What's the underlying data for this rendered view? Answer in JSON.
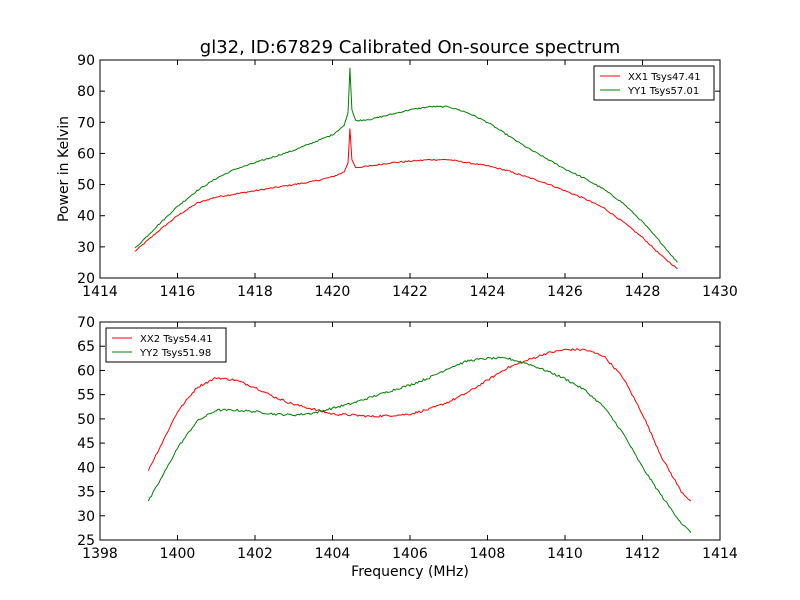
{
  "title": "gl32, ID:67829 Calibrated On-source spectrum",
  "colors": {
    "red": "#ff0000",
    "green": "#008000"
  },
  "chart_data": [
    {
      "type": "line",
      "ylabel": "Power in Kelvin",
      "xlabel": "",
      "xlim": [
        1414,
        1430
      ],
      "ylim": [
        20,
        90
      ],
      "xticks": [
        1414,
        1416,
        1418,
        1420,
        1422,
        1424,
        1426,
        1428,
        1430
      ],
      "yticks": [
        20,
        30,
        40,
        50,
        60,
        70,
        80,
        90
      ],
      "legend_position": "top-right",
      "series": [
        {
          "name": "XX1 Tsys47.41",
          "color": "#ff0000",
          "x": [
            1414.9,
            1415.5,
            1416.0,
            1416.5,
            1417.0,
            1417.5,
            1418.0,
            1418.5,
            1419.0,
            1419.5,
            1420.0,
            1420.3,
            1420.4,
            1420.45,
            1420.5,
            1420.6,
            1421.0,
            1421.5,
            1422.0,
            1422.5,
            1423.0,
            1423.5,
            1424.0,
            1424.5,
            1425.0,
            1425.5,
            1426.0,
            1426.5,
            1427.0,
            1427.5,
            1428.0,
            1428.5,
            1428.9
          ],
          "y": [
            28.5,
            35,
            40,
            44,
            46,
            47,
            48,
            49,
            50,
            51,
            52.5,
            54,
            57,
            68,
            58,
            55.5,
            56,
            57,
            57.5,
            58,
            58,
            57,
            56,
            54.5,
            52.5,
            50.5,
            48,
            45.5,
            42.5,
            38,
            33,
            27,
            23
          ]
        },
        {
          "name": "YY1 Tsys57.01",
          "color": "#008000",
          "x": [
            1414.9,
            1415.5,
            1416.0,
            1416.5,
            1417.0,
            1417.5,
            1418.0,
            1418.5,
            1419.0,
            1419.5,
            1420.0,
            1420.3,
            1420.4,
            1420.45,
            1420.5,
            1420.6,
            1421.0,
            1421.5,
            1422.0,
            1422.5,
            1423.0,
            1423.5,
            1424.0,
            1424.5,
            1425.0,
            1425.5,
            1426.0,
            1426.5,
            1427.0,
            1427.5,
            1428.0,
            1428.5,
            1428.9
          ],
          "y": [
            29.5,
            37,
            43,
            48,
            52,
            55,
            57,
            59,
            61,
            63.5,
            66,
            69,
            73,
            87.5,
            74,
            70.5,
            71,
            72.5,
            74,
            75,
            75,
            73,
            70,
            66,
            62,
            58.5,
            55,
            52,
            48.5,
            44,
            38,
            31,
            25
          ]
        }
      ]
    },
    {
      "type": "line",
      "ylabel": "",
      "xlabel": "Frequency (MHz)",
      "xlim": [
        1398,
        1414
      ],
      "ylim": [
        25,
        70
      ],
      "xticks": [
        1398,
        1400,
        1402,
        1404,
        1406,
        1408,
        1410,
        1412,
        1414
      ],
      "yticks": [
        25,
        30,
        35,
        40,
        45,
        50,
        55,
        60,
        65,
        70
      ],
      "legend_position": "top-left",
      "series": [
        {
          "name": "XX2 Tsys54.41",
          "color": "#ff0000",
          "x": [
            1399.25,
            1399.6,
            1400.0,
            1400.5,
            1401.0,
            1401.5,
            1402.0,
            1402.5,
            1403.0,
            1403.5,
            1404.0,
            1404.5,
            1405.0,
            1405.5,
            1406.0,
            1406.5,
            1407.0,
            1407.5,
            1408.0,
            1408.5,
            1409.0,
            1409.5,
            1410.0,
            1410.5,
            1411.0,
            1411.5,
            1412.0,
            1412.5,
            1413.0,
            1413.25
          ],
          "y": [
            39.5,
            45,
            51.5,
            56.5,
            58.5,
            58,
            56.5,
            54.5,
            53,
            52,
            51,
            50.8,
            50.5,
            50.7,
            51,
            52,
            53.5,
            55.5,
            58,
            60.5,
            62,
            63.5,
            64.3,
            64.3,
            63,
            58.5,
            51,
            42,
            35,
            33
          ]
        },
        {
          "name": "YY2 Tsys51.98",
          "color": "#008000",
          "x": [
            1399.25,
            1399.6,
            1400.0,
            1400.5,
            1401.0,
            1401.5,
            1402.0,
            1402.5,
            1403.0,
            1403.5,
            1404.0,
            1404.5,
            1405.0,
            1405.5,
            1406.0,
            1406.5,
            1407.0,
            1407.5,
            1408.0,
            1408.5,
            1409.0,
            1409.5,
            1410.0,
            1410.5,
            1411.0,
            1411.5,
            1412.0,
            1412.5,
            1413.0,
            1413.25
          ],
          "y": [
            33,
            38,
            44,
            49.5,
            51.8,
            51.8,
            51.5,
            51,
            50.8,
            51.2,
            52.2,
            53.2,
            54.5,
            55.8,
            57,
            58.5,
            60.5,
            62,
            62.5,
            62.5,
            61.5,
            60,
            58.3,
            56,
            52.5,
            47,
            40,
            34,
            28.5,
            26.5
          ]
        }
      ]
    }
  ]
}
